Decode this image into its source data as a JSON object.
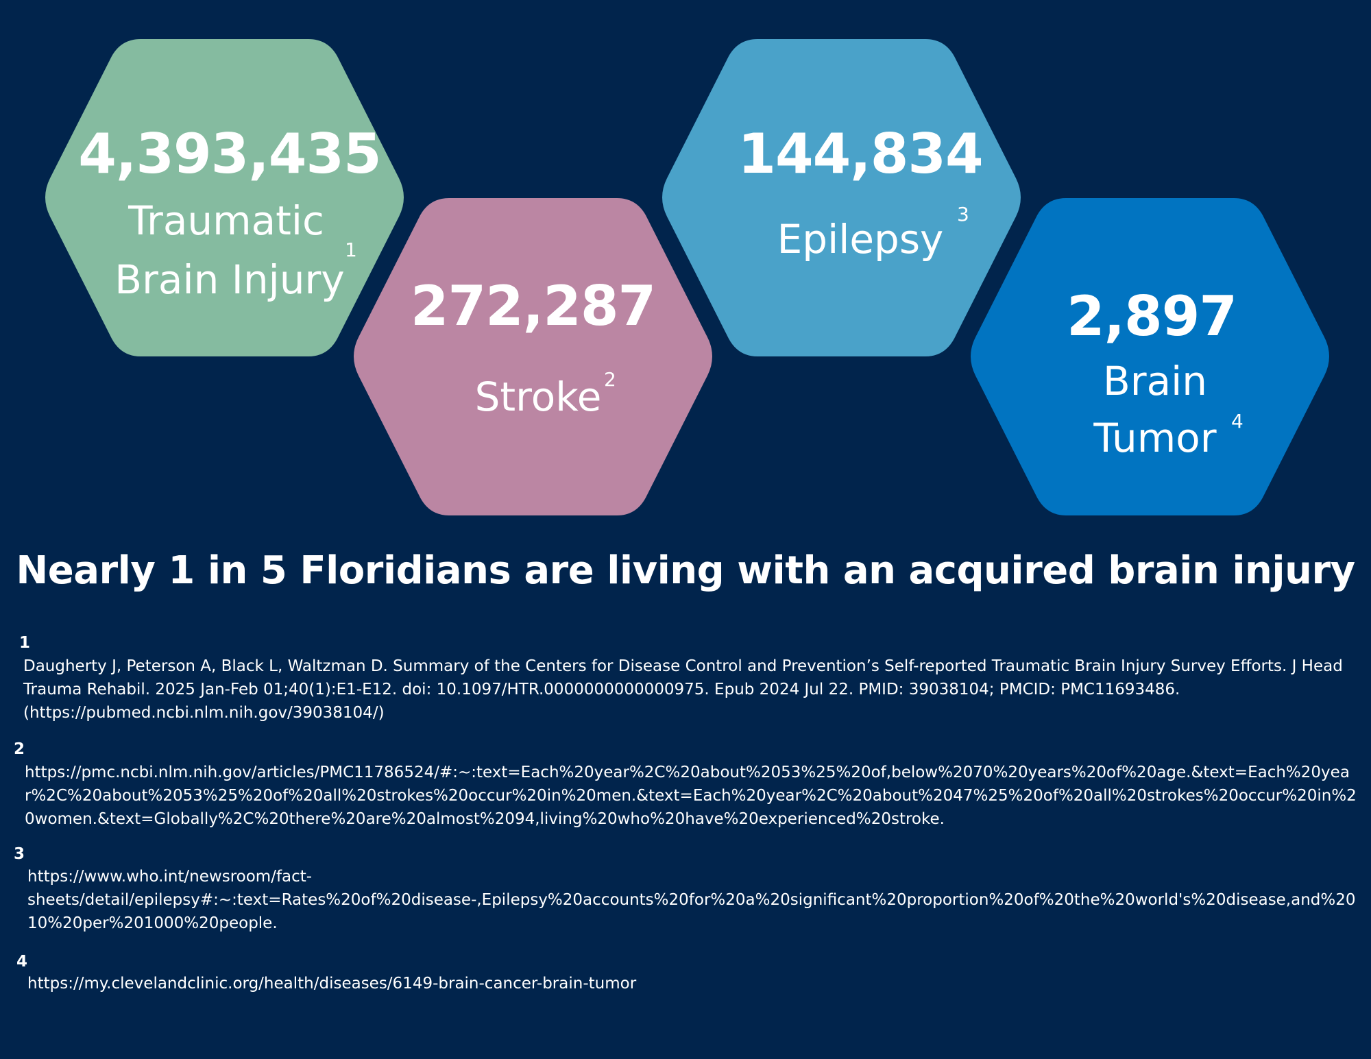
{
  "colors": {
    "background": "#01244c",
    "tbi": "#85bba0",
    "stroke": "#bb86a3",
    "epilepsy": "#4aa2c9",
    "tumor": "#0174c1"
  },
  "stats": {
    "tbi": {
      "value": "4,393,435",
      "label_line1": "Traumatic",
      "label_line2": "Brain Injury",
      "ref": "1"
    },
    "stroke": {
      "value": "272,287",
      "label": "Stroke",
      "ref": "2"
    },
    "epilepsy": {
      "value": "144,834",
      "label": "Epilepsy",
      "ref": "3"
    },
    "tumor": {
      "value": "2,897",
      "label_line1": "Brain",
      "label_line2": "Tumor",
      "ref": "4"
    }
  },
  "headline": "Nearly 1 in 5 Floridians are living with an acquired brain injury",
  "references": [
    {
      "num": "1",
      "text": "Daugherty J, Peterson A, Black L, Waltzman D. Summary of the Centers for Disease Control and Prevention’s Self-reported Traumatic Brain Injury Survey Efforts. J Head Trauma Rehabil. 2025 Jan-Feb 01;40(1):E1-E12. doi: 10.1097/HTR.0000000000000975. Epub 2024 Jul 22. PMID: 39038104; PMCID: PMC11693486. (https://pubmed.ncbi.nlm.nih.gov/39038104/)"
    },
    {
      "num": "2",
      "text": "https://pmc.ncbi.nlm.nih.gov/articles/PMC11786524/#:~:text=Each%20year%2C%20about%2053%25%20of,below%2070%20years%20of%20age.&text=Each%20year%2C%20about%2053%25%20of%20all%20strokes%20occur%20in%20men.&text=Each%20year%2C%20about%2047%25%20of%20all%20strokes%20occur%20in%20women.&text=Globally%2C%20there%20are%20almost%2094,living%20who%20have%20experienced%20stroke."
    },
    {
      "num": "3",
      "text": "https://www.who.int/newsroom/fact-sheets/detail/epilepsy#:~:text=Rates%20of%20disease-,Epilepsy%20accounts%20for%20a%20significant%20proportion%20of%20the%20world's%20disease,and%2010%20per%201000%20people."
    },
    {
      "num": "4",
      "text": "https://my.clevelandclinic.org/health/diseases/6149-brain-cancer-brain-tumor"
    }
  ]
}
